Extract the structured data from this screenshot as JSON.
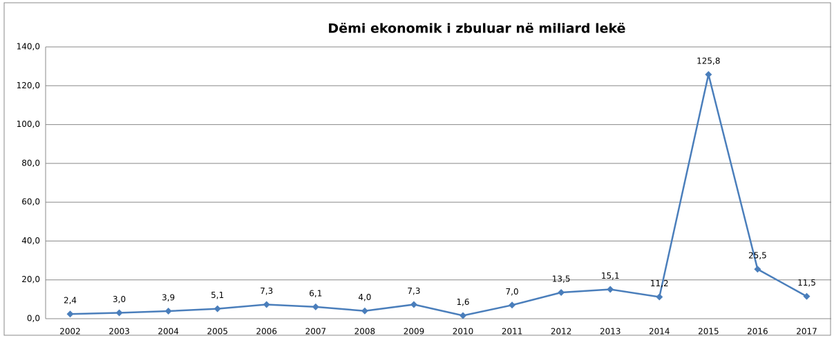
{
  "chart_data": {
    "type": "line",
    "title": "Dëmi ekonomik i zbuluar në miliard lekë",
    "categories": [
      "2002",
      "2003",
      "2004",
      "2005",
      "2006",
      "2007",
      "2008",
      "2009",
      "2010",
      "2011",
      "2012",
      "2013",
      "2014",
      "2015",
      "2016",
      "2017"
    ],
    "series": [
      {
        "color": "#4a7ebb",
        "values": [
          2.4,
          3.0,
          3.9,
          5.1,
          7.3,
          6.1,
          4.0,
          7.3,
          1.6,
          7.0,
          13.5,
          15.1,
          11.2,
          125.8,
          25.5,
          11.5
        ],
        "value_labels": [
          "2,4",
          "3,0",
          "3,9",
          "5,1",
          "7,3",
          "6,1",
          "4,0",
          "7,3",
          "1,6",
          "7,0",
          "13,5",
          "15,1",
          "11,2",
          "125,8",
          "25,5",
          "11,5"
        ]
      }
    ],
    "ylim": [
      0,
      140
    ],
    "yticks": [
      {
        "value": 0,
        "label": "0,0"
      },
      {
        "value": 20,
        "label": "20,0"
      },
      {
        "value": 40,
        "label": "40,0"
      },
      {
        "value": 60,
        "label": "60,0"
      },
      {
        "value": 80,
        "label": "80,0"
      },
      {
        "value": 100,
        "label": "100,0"
      },
      {
        "value": 120,
        "label": "120,0"
      },
      {
        "value": 140,
        "label": "140,0"
      }
    ],
    "grid": true
  }
}
